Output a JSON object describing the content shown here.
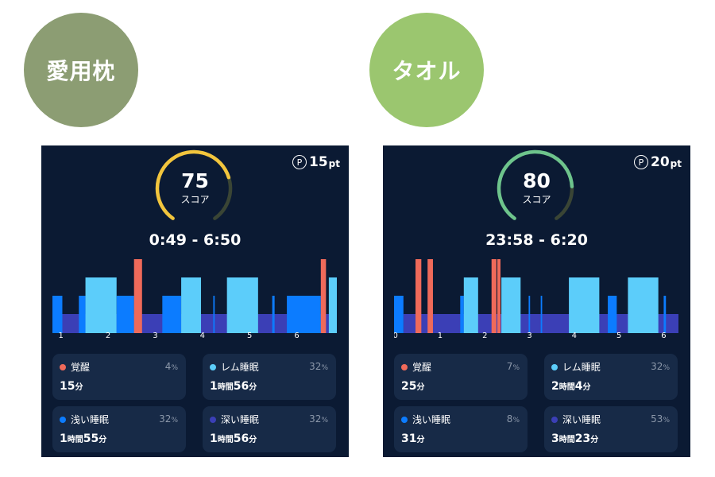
{
  "colors": {
    "awake": "#ef6a5a",
    "rem": "#5ccdfa",
    "light": "#0c7cff",
    "deep": "#3b3fb6",
    "panel_bg": "#0b1a33",
    "card_bg": "#172a47"
  },
  "comparisons": [
    {
      "badge": "愛用枕",
      "badge_color": "#8c9d73",
      "points_mark": "P",
      "points_value": "15",
      "points_unit": "pt",
      "score": "75",
      "score_label": "スコア",
      "score_fraction": 0.75,
      "gauge_color": "#f2c53d",
      "time_range": "0:49 - 6:50",
      "chart_data": {
        "type": "bar",
        "x_tick_labels": [
          "1",
          "2",
          "3",
          "4",
          "5",
          "6"
        ],
        "x_ticks": [
          1,
          2,
          3,
          4,
          5,
          6
        ],
        "x_range": [
          0.82,
          6.85
        ],
        "deep_band": [
          [
            1.0,
            6.85
          ]
        ],
        "segments": [
          {
            "stage": "light",
            "start": 0.82,
            "end": 1.03
          },
          {
            "stage": "light",
            "start": 1.38,
            "end": 1.52
          },
          {
            "stage": "rem",
            "start": 1.52,
            "end": 2.18
          },
          {
            "stage": "light",
            "start": 2.18,
            "end": 2.55
          },
          {
            "stage": "awake",
            "start": 2.55,
            "end": 2.72
          },
          {
            "stage": "light",
            "start": 3.15,
            "end": 3.55
          },
          {
            "stage": "rem",
            "start": 3.55,
            "end": 3.97
          },
          {
            "stage": "light",
            "start": 4.23,
            "end": 4.26
          },
          {
            "stage": "rem",
            "start": 4.52,
            "end": 5.18
          },
          {
            "stage": "light",
            "start": 5.48,
            "end": 5.53
          },
          {
            "stage": "light",
            "start": 5.79,
            "end": 6.51
          },
          {
            "stage": "awake",
            "start": 6.51,
            "end": 6.62
          },
          {
            "stage": "rem",
            "start": 6.68,
            "end": 6.85
          }
        ]
      },
      "cards": [
        {
          "key": "awake",
          "label": "覚醒",
          "percent": "4",
          "percent_unit": "%",
          "duration": [
            {
              "t": "15",
              "s": false
            },
            {
              "t": "分",
              "s": true
            }
          ]
        },
        {
          "key": "rem",
          "label": "レム睡眠",
          "percent": "32",
          "percent_unit": "%",
          "duration": [
            {
              "t": "1",
              "s": false
            },
            {
              "t": "時間",
              "s": true
            },
            {
              "t": "56",
              "s": false
            },
            {
              "t": "分",
              "s": true
            }
          ]
        },
        {
          "key": "light",
          "label": "浅い睡眠",
          "percent": "32",
          "percent_unit": "%",
          "duration": [
            {
              "t": "1",
              "s": false
            },
            {
              "t": "時間",
              "s": true
            },
            {
              "t": "55",
              "s": false
            },
            {
              "t": "分",
              "s": true
            }
          ]
        },
        {
          "key": "deep",
          "label": "深い睡眠",
          "percent": "32",
          "percent_unit": "%",
          "duration": [
            {
              "t": "1",
              "s": false
            },
            {
              "t": "時間",
              "s": true
            },
            {
              "t": "56",
              "s": false
            },
            {
              "t": "分",
              "s": true
            }
          ]
        }
      ]
    },
    {
      "badge": "タオル",
      "badge_color": "#9bc66f",
      "points_mark": "P",
      "points_value": "20",
      "points_unit": "pt",
      "score": "80",
      "score_label": "スコア",
      "score_fraction": 0.8,
      "gauge_color": "#6ec48c",
      "time_range": "23:58 - 6:20",
      "chart_data": {
        "type": "bar",
        "x_tick_labels": [
          "0",
          "1",
          "2",
          "3",
          "4",
          "5",
          "6"
        ],
        "x_ticks": [
          0,
          1,
          2,
          3,
          4,
          5,
          6
        ],
        "x_range": [
          -0.03,
          6.33
        ],
        "deep_band": [
          [
            0.18,
            6.33
          ]
        ],
        "segments": [
          {
            "stage": "light",
            "start": -0.03,
            "end": 0.18
          },
          {
            "stage": "awake",
            "start": 0.45,
            "end": 0.58
          },
          {
            "stage": "awake",
            "start": 0.72,
            "end": 0.84
          },
          {
            "stage": "light",
            "start": 1.45,
            "end": 1.53
          },
          {
            "stage": "rem",
            "start": 1.53,
            "end": 1.85
          },
          {
            "stage": "awake",
            "start": 2.15,
            "end": 2.26
          },
          {
            "stage": "awake",
            "start": 2.28,
            "end": 2.35
          },
          {
            "stage": "rem",
            "start": 2.37,
            "end": 2.8
          },
          {
            "stage": "light",
            "start": 2.98,
            "end": 3.0
          },
          {
            "stage": "light",
            "start": 3.25,
            "end": 3.28
          },
          {
            "stage": "rem",
            "start": 3.88,
            "end": 4.56
          },
          {
            "stage": "light",
            "start": 4.75,
            "end": 4.95
          },
          {
            "stage": "rem",
            "start": 5.2,
            "end": 5.88
          },
          {
            "stage": "light",
            "start": 6.0,
            "end": 6.05
          }
        ]
      },
      "cards": [
        {
          "key": "awake",
          "label": "覚醒",
          "percent": "7",
          "percent_unit": "%",
          "duration": [
            {
              "t": "25",
              "s": false
            },
            {
              "t": "分",
              "s": true
            }
          ]
        },
        {
          "key": "rem",
          "label": "レム睡眠",
          "percent": "32",
          "percent_unit": "%",
          "duration": [
            {
              "t": "2",
              "s": false
            },
            {
              "t": "時間",
              "s": true
            },
            {
              "t": "4",
              "s": false
            },
            {
              "t": "分",
              "s": true
            }
          ]
        },
        {
          "key": "light",
          "label": "浅い睡眠",
          "percent": "8",
          "percent_unit": "%",
          "duration": [
            {
              "t": "31",
              "s": false
            },
            {
              "t": "分",
              "s": true
            }
          ]
        },
        {
          "key": "deep",
          "label": "深い睡眠",
          "percent": "53",
          "percent_unit": "%",
          "duration": [
            {
              "t": "3",
              "s": false
            },
            {
              "t": "時間",
              "s": true
            },
            {
              "t": "23",
              "s": false
            },
            {
              "t": "分",
              "s": true
            }
          ]
        }
      ]
    }
  ]
}
